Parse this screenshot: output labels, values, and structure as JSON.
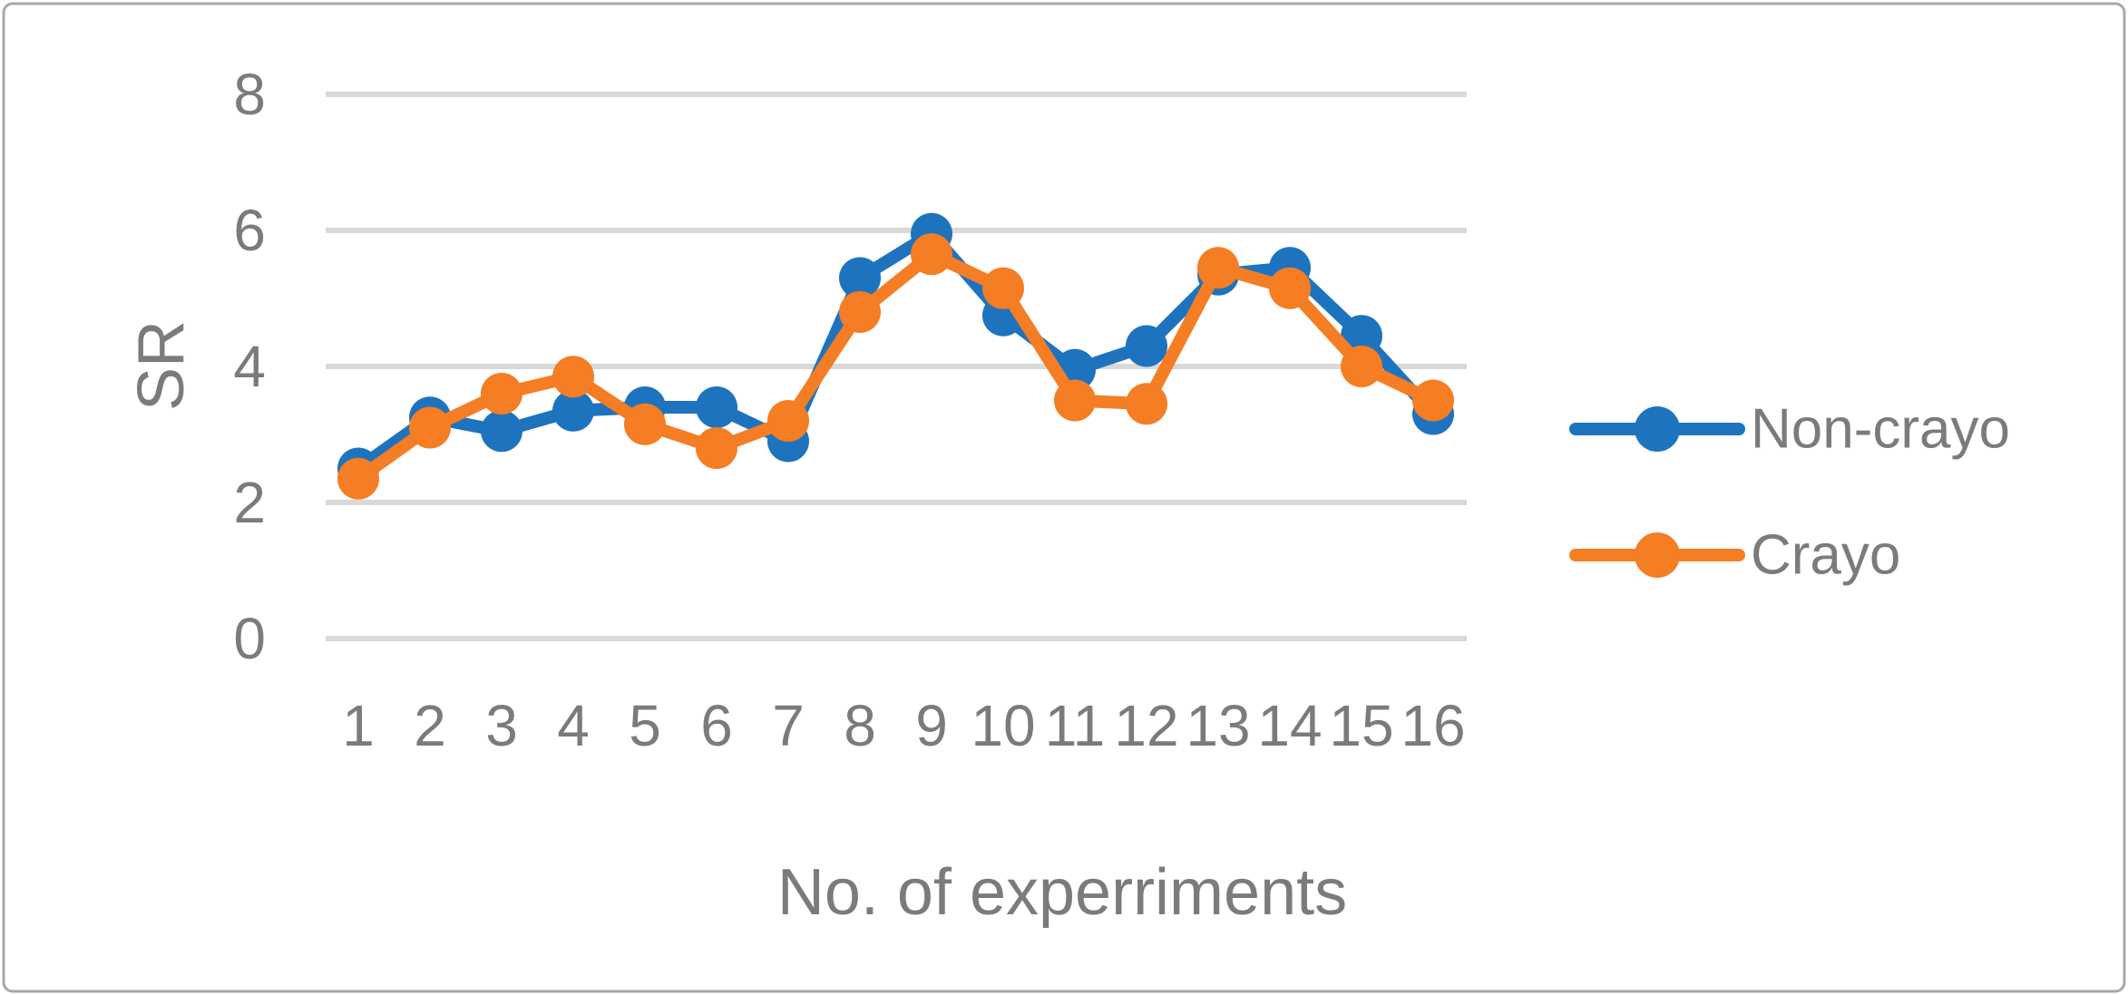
{
  "figure": {
    "background_color": "#ffffff",
    "border_color": "#a8a8a8"
  },
  "chart_data": {
    "type": "line",
    "title": "",
    "xlabel": "No. of experriments",
    "ylabel": "SR",
    "categories": [
      "1",
      "2",
      "3",
      "4",
      "5",
      "6",
      "7",
      "8",
      "9",
      "10",
      "11",
      "12",
      "13",
      "14",
      "15",
      "16"
    ],
    "series": [
      {
        "name": "Non-crayo",
        "color": "#1e73be",
        "values": [
          2.5,
          3.25,
          3.05,
          3.35,
          3.4,
          3.4,
          2.9,
          5.3,
          5.95,
          4.75,
          3.95,
          4.3,
          5.35,
          5.45,
          4.45,
          3.3
        ]
      },
      {
        "name": "Crayo",
        "color": "#f57d23",
        "values": [
          2.35,
          3.1,
          3.6,
          3.85,
          3.15,
          2.8,
          3.2,
          4.8,
          5.65,
          5.15,
          3.5,
          3.45,
          5.45,
          5.15,
          4.0,
          3.5
        ]
      }
    ],
    "ylim": [
      0,
      8
    ],
    "yticks": [
      0,
      2,
      4,
      6,
      8
    ],
    "grid": true,
    "gridline_color": "#d9d9d9",
    "text_color": "#7b7b7b",
    "legend_position": "right",
    "marker": "circle"
  }
}
